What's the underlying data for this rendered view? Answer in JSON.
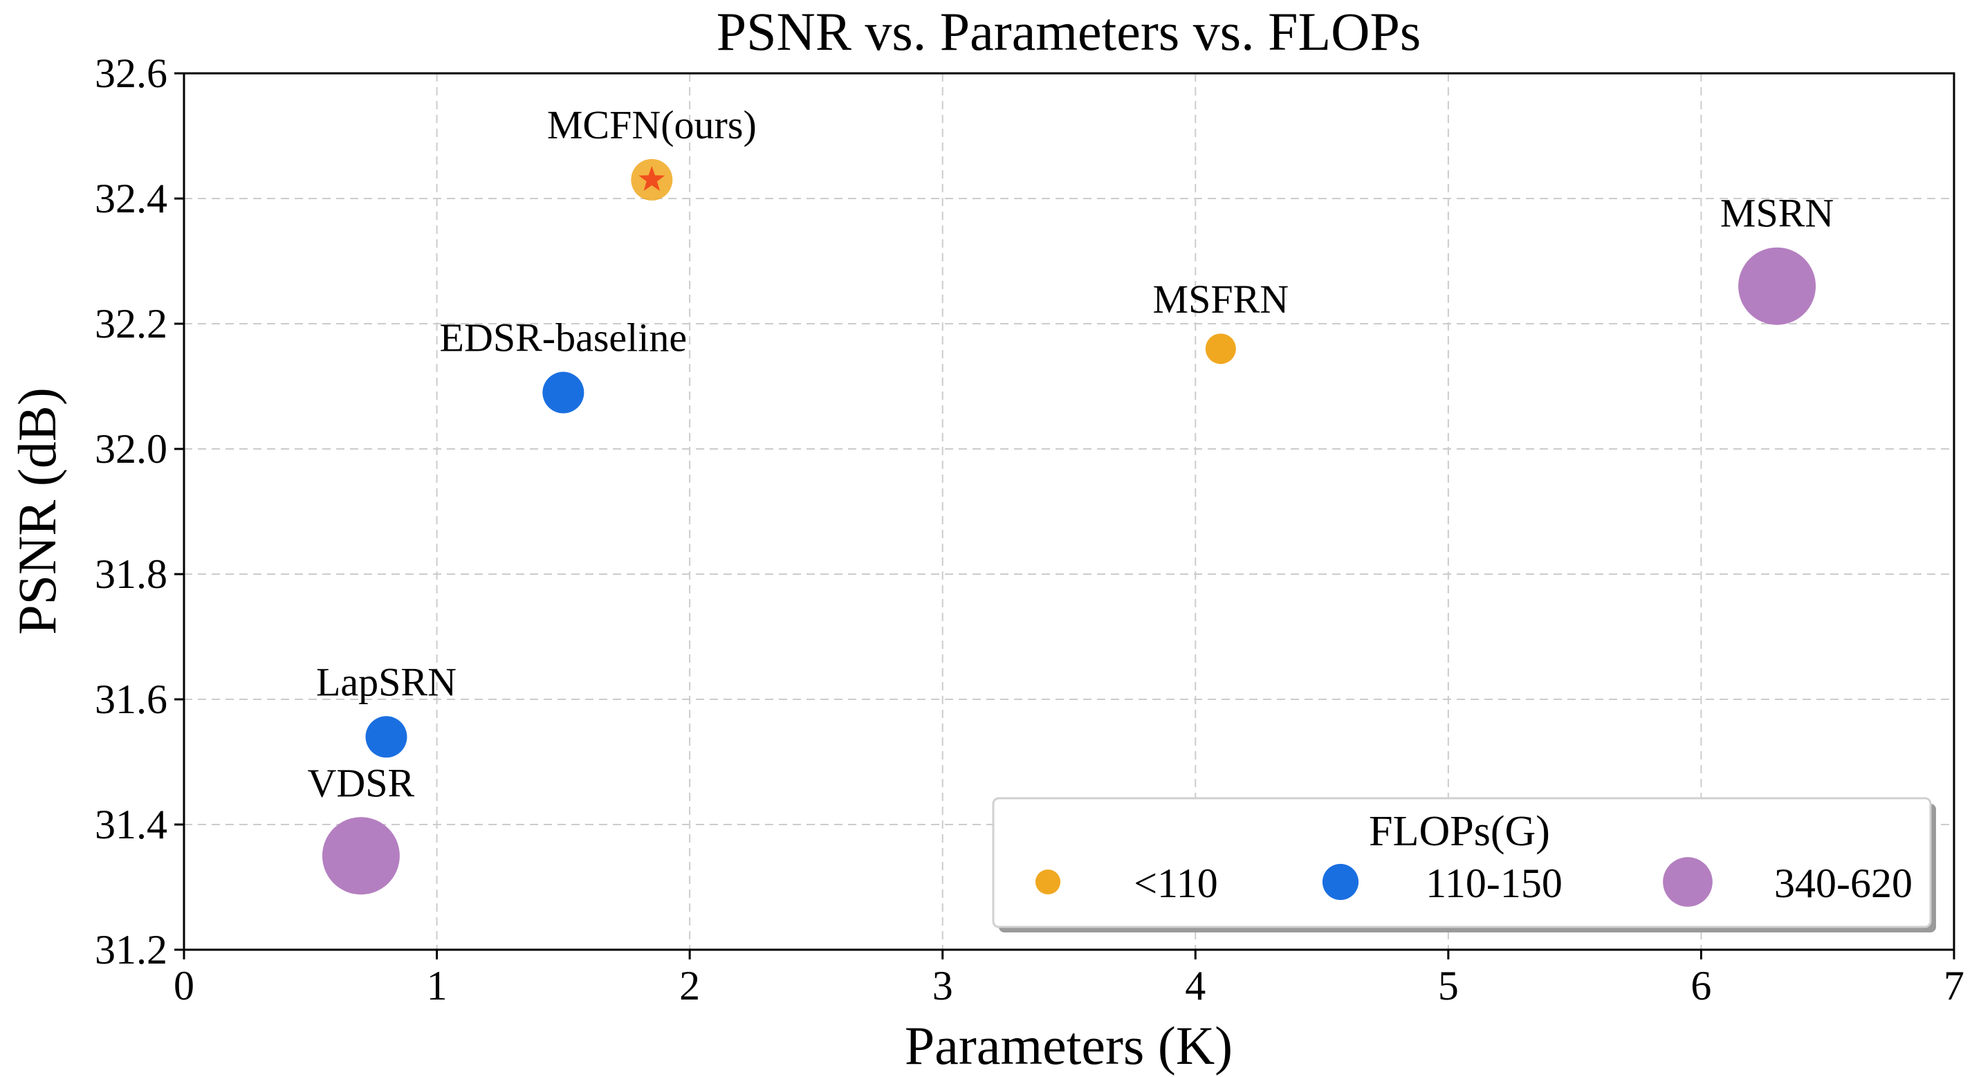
{
  "colors": {
    "small": "#f0a820",
    "medium": "#1a6fe0",
    "large": "#b47fc0",
    "star": "#f04e1e",
    "grid": "#cccccc",
    "axis": "#000000"
  },
  "chart_data": {
    "type": "scatter",
    "title": "PSNR vs. Parameters vs. FLOPs",
    "xlabel": "Parameters (K)",
    "ylabel": "PSNR (dB)",
    "xlim": [
      0,
      7
    ],
    "ylim": [
      31.2,
      32.6
    ],
    "xticks": [
      0,
      1,
      2,
      3,
      4,
      5,
      6,
      7
    ],
    "xtick_labels": [
      "0",
      "1",
      "2",
      "3",
      "4",
      "5",
      "6",
      "7"
    ],
    "yticks": [
      31.2,
      31.4,
      31.6,
      31.8,
      32.0,
      32.2,
      32.4,
      32.6
    ],
    "ytick_labels": [
      "31.2",
      "31.4",
      "31.6",
      "31.8",
      "32.0",
      "32.2",
      "32.4",
      "32.6"
    ],
    "grid": true,
    "points": [
      {
        "label": "VDSR",
        "x": 0.7,
        "y": 31.35,
        "flops_group": "340-620",
        "color": "#b47fc0",
        "marker": "circle"
      },
      {
        "label": "LapSRN",
        "x": 0.8,
        "y": 31.54,
        "flops_group": "110-150",
        "color": "#1a6fe0",
        "marker": "circle"
      },
      {
        "label": "EDSR-baseline",
        "x": 1.5,
        "y": 32.09,
        "flops_group": "110-150",
        "color": "#1a6fe0",
        "marker": "circle"
      },
      {
        "label": "MCFN(ours)",
        "x": 1.85,
        "y": 32.43,
        "flops_group": "<110",
        "color": "#f0a820",
        "marker": "star"
      },
      {
        "label": "MSFRN",
        "x": 4.1,
        "y": 32.16,
        "flops_group": "<110",
        "color": "#f0a820",
        "marker": "circle"
      },
      {
        "label": "MSRN",
        "x": 6.3,
        "y": 32.26,
        "flops_group": "340-620",
        "color": "#b47fc0",
        "marker": "circle"
      }
    ],
    "legend": {
      "title": "FLOPs(G)",
      "placement": "lower-right",
      "entries": [
        {
          "label": "<110",
          "group": "<110",
          "color": "#f0a820"
        },
        {
          "label": "110-150",
          "group": "110-150",
          "color": "#1a6fe0"
        },
        {
          "label": "340-620",
          "group": "340-620",
          "color": "#b47fc0"
        }
      ]
    }
  }
}
